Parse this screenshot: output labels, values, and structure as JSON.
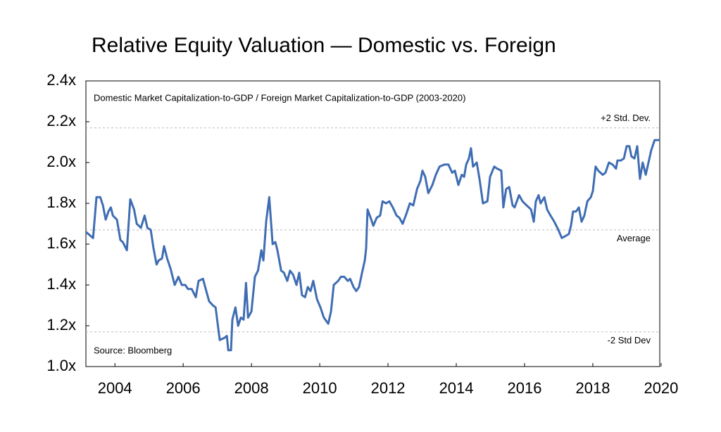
{
  "chart_data": {
    "type": "line",
    "title": "Relative Equity Valuation — Domestic vs. Foreign",
    "subtitle": "Domestic Market Capitalization-to-GDP / Foreign Market Capitalization-to-GDP (2003-2020)",
    "source": "Source: Bloomberg",
    "xlim": [
      2003.15,
      2019.96
    ],
    "xticks": [
      2004,
      2006,
      2008,
      2010,
      2012,
      2014,
      2016,
      2018,
      2020
    ],
    "ylim": [
      1.0,
      2.4
    ],
    "yticks": [
      {
        "value": 1.0,
        "label": "1.0x"
      },
      {
        "value": 1.2,
        "label": "1.2x"
      },
      {
        "value": 1.4,
        "label": "1.4x"
      },
      {
        "value": 1.6,
        "label": "1.6x"
      },
      {
        "value": 1.8,
        "label": "1.8x"
      },
      {
        "value": 2.0,
        "label": "2.0x"
      },
      {
        "value": 2.2,
        "label": "2.2x"
      },
      {
        "value": 2.4,
        "label": "2.4x"
      }
    ],
    "reference_lines": [
      {
        "value": 2.17,
        "label": "+2 Std. Dev."
      },
      {
        "value": 1.67,
        "label": "Average"
      },
      {
        "value": 1.17,
        "label": "-2 Std Dev"
      }
    ],
    "series": [
      {
        "color": "#3f6db3",
        "x": [
          2003.15,
          2003.36,
          2003.46,
          2003.57,
          2003.65,
          2003.73,
          2003.81,
          2003.88,
          2003.94,
          2004.06,
          2004.16,
          2004.23,
          2004.35,
          2004.45,
          2004.56,
          2004.64,
          2004.76,
          2004.87,
          2004.95,
          2005.05,
          2005.13,
          2005.22,
          2005.28,
          2005.38,
          2005.44,
          2005.53,
          2005.63,
          2005.75,
          2005.86,
          2005.96,
          2006.06,
          2006.14,
          2006.25,
          2006.37,
          2006.45,
          2006.58,
          2006.66,
          2006.76,
          2006.87,
          2006.95,
          2007.07,
          2007.2,
          2007.28,
          2007.32,
          2007.4,
          2007.44,
          2007.53,
          2007.61,
          2007.69,
          2007.77,
          2007.84,
          2007.9,
          2008.0,
          2008.1,
          2008.19,
          2008.29,
          2008.35,
          2008.43,
          2008.52,
          2008.62,
          2008.7,
          2008.76,
          2008.87,
          2008.95,
          2009.05,
          2009.13,
          2009.22,
          2009.32,
          2009.4,
          2009.48,
          2009.57,
          2009.65,
          2009.73,
          2009.81,
          2009.92,
          2010.02,
          2010.12,
          2010.25,
          2010.33,
          2010.41,
          2010.54,
          2010.62,
          2010.72,
          2010.82,
          2010.89,
          2010.99,
          2011.07,
          2011.15,
          2011.24,
          2011.32,
          2011.36,
          2011.4,
          2011.51,
          2011.57,
          2011.67,
          2011.77,
          2011.84,
          2011.94,
          2012.04,
          2012.14,
          2012.25,
          2012.33,
          2012.43,
          2012.54,
          2012.64,
          2012.74,
          2012.85,
          2012.95,
          2013.01,
          2013.09,
          2013.18,
          2013.3,
          2013.4,
          2013.51,
          2013.65,
          2013.77,
          2013.88,
          2013.96,
          2014.06,
          2014.16,
          2014.23,
          2014.29,
          2014.37,
          2014.43,
          2014.49,
          2014.6,
          2014.68,
          2014.78,
          2014.91,
          2014.99,
          2015.11,
          2015.2,
          2015.32,
          2015.38,
          2015.46,
          2015.55,
          2015.65,
          2015.71,
          2015.84,
          2015.94,
          2016.06,
          2016.19,
          2016.27,
          2016.33,
          2016.41,
          2016.47,
          2016.58,
          2016.66,
          2016.76,
          2016.87,
          2016.99,
          2017.09,
          2017.2,
          2017.3,
          2017.36,
          2017.42,
          2017.51,
          2017.59,
          2017.67,
          2017.75,
          2017.84,
          2017.94,
          2018.0,
          2018.08,
          2018.16,
          2018.29,
          2018.37,
          2018.47,
          2018.58,
          2018.68,
          2018.72,
          2018.82,
          2018.91,
          2018.99,
          2019.07,
          2019.13,
          2019.22,
          2019.3,
          2019.38,
          2019.46,
          2019.55,
          2019.63,
          2019.71,
          2019.81,
          2019.96
        ],
        "values": [
          1.66,
          1.63,
          1.83,
          1.83,
          1.79,
          1.72,
          1.76,
          1.78,
          1.74,
          1.72,
          1.62,
          1.61,
          1.57,
          1.82,
          1.77,
          1.7,
          1.68,
          1.74,
          1.68,
          1.67,
          1.58,
          1.5,
          1.52,
          1.53,
          1.59,
          1.53,
          1.48,
          1.4,
          1.44,
          1.4,
          1.4,
          1.38,
          1.38,
          1.34,
          1.42,
          1.43,
          1.38,
          1.32,
          1.3,
          1.29,
          1.13,
          1.14,
          1.15,
          1.08,
          1.08,
          1.23,
          1.29,
          1.2,
          1.24,
          1.23,
          1.41,
          1.24,
          1.27,
          1.44,
          1.47,
          1.57,
          1.52,
          1.71,
          1.83,
          1.6,
          1.61,
          1.57,
          1.47,
          1.46,
          1.42,
          1.47,
          1.45,
          1.4,
          1.46,
          1.35,
          1.34,
          1.39,
          1.37,
          1.42,
          1.33,
          1.29,
          1.24,
          1.21,
          1.27,
          1.4,
          1.42,
          1.44,
          1.44,
          1.42,
          1.43,
          1.39,
          1.37,
          1.39,
          1.46,
          1.52,
          1.58,
          1.77,
          1.72,
          1.69,
          1.73,
          1.74,
          1.81,
          1.8,
          1.81,
          1.78,
          1.74,
          1.73,
          1.7,
          1.75,
          1.8,
          1.79,
          1.87,
          1.91,
          1.96,
          1.93,
          1.85,
          1.89,
          1.94,
          1.98,
          1.99,
          1.99,
          1.95,
          1.96,
          1.89,
          1.94,
          1.93,
          1.99,
          2.02,
          2.07,
          1.98,
          2.0,
          1.92,
          1.8,
          1.81,
          1.93,
          1.98,
          1.97,
          1.96,
          1.78,
          1.87,
          1.88,
          1.79,
          1.78,
          1.84,
          1.81,
          1.79,
          1.77,
          1.71,
          1.81,
          1.84,
          1.8,
          1.83,
          1.77,
          1.74,
          1.71,
          1.67,
          1.63,
          1.64,
          1.65,
          1.69,
          1.76,
          1.76,
          1.78,
          1.71,
          1.74,
          1.81,
          1.83,
          1.86,
          1.98,
          1.96,
          1.94,
          1.95,
          2.0,
          1.99,
          1.97,
          2.01,
          2.01,
          2.02,
          2.08,
          2.08,
          2.03,
          2.02,
          2.08,
          1.92,
          2.0,
          1.94,
          2.0,
          2.06,
          2.11,
          2.11
        ]
      }
    ]
  }
}
